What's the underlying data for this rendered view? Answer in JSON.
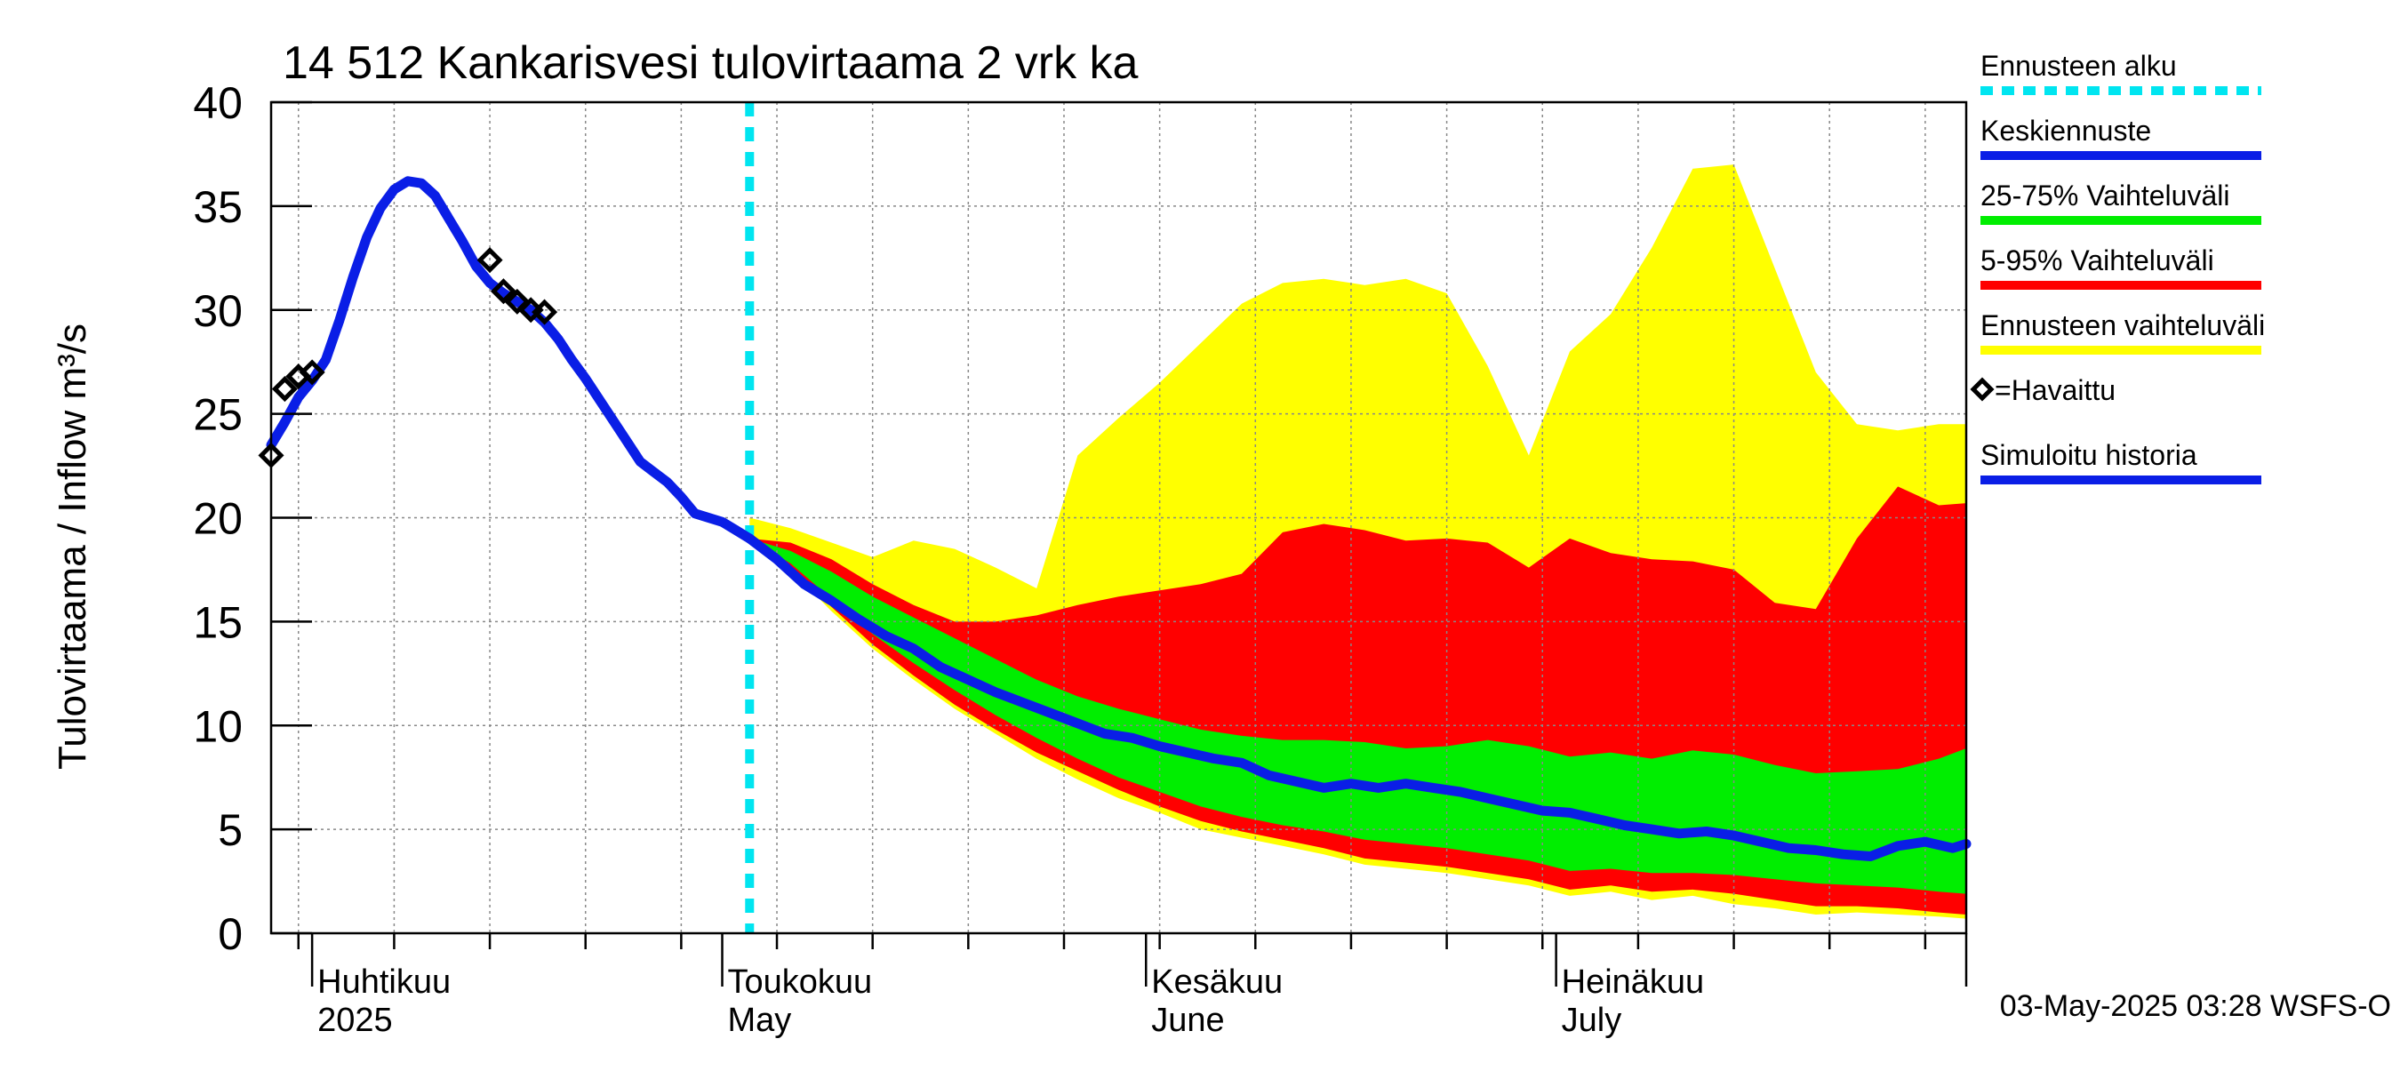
{
  "chart_data": {
    "type": "area",
    "title": "14 512 Kankarisvesi tulovirtaama 2 vrk ka",
    "ylabel": "Tulovirtaama / Inflow    m³/s",
    "ylim": [
      0,
      40
    ],
    "y_ticks": [
      0,
      5,
      10,
      15,
      20,
      25,
      30,
      35,
      40
    ],
    "xlim": [
      "2025-03-29",
      "2025-07-31"
    ],
    "grid": true,
    "legend_position": "right",
    "month_labels": [
      {
        "date": "2025-04-01",
        "fi": "Huhtikuu",
        "en": "2025"
      },
      {
        "date": "2025-05-01",
        "fi": "Toukokuu",
        "en": "May"
      },
      {
        "date": "2025-06-01",
        "fi": "Kesäkuu",
        "en": "June"
      },
      {
        "date": "2025-07-01",
        "fi": "Heinäkuu",
        "en": "July"
      }
    ],
    "forecast_start": "2025-05-03",
    "colors": {
      "forecast_start": "#00e5f0",
      "median": "#0a1ee6",
      "band_25_75": "#00ee00",
      "band_5_95": "#ff0000",
      "band_range": "#ffff00",
      "observed": "#000000",
      "grid": "#888888"
    },
    "legend": [
      {
        "label": "Ennusteen alku",
        "color": "#00e5f0",
        "style": "dashed"
      },
      {
        "label": "Keskiennuste",
        "color": "#0a1ee6",
        "style": "solid"
      },
      {
        "label": "25-75% Vaihteluväli",
        "color": "#00ee00",
        "style": "solid"
      },
      {
        "label": "5-95% Vaihteluväli",
        "color": "#ff0000",
        "style": "solid"
      },
      {
        "label": "Ennusteen vaihteluväli",
        "color": "#ffff00",
        "style": "solid"
      },
      {
        "label": "=Havaittu",
        "color": "#000000",
        "style": "marker"
      },
      {
        "label": "Simuloitu historia",
        "color": "#0a1ee6",
        "style": "solid"
      }
    ],
    "footer": "03-May-2025 03:28 WSFS-O",
    "series": [
      {
        "name": "Simuloitu historia",
        "points": [
          [
            "2025-03-29",
            23.5
          ],
          [
            "2025-03-30",
            24.6
          ],
          [
            "2025-03-31",
            25.8
          ],
          [
            "2025-04-01",
            26.6
          ],
          [
            "2025-04-02",
            27.6
          ],
          [
            "2025-04-03",
            29.5
          ],
          [
            "2025-04-04",
            31.6
          ],
          [
            "2025-04-05",
            33.5
          ],
          [
            "2025-04-06",
            34.9
          ],
          [
            "2025-04-07",
            35.8
          ],
          [
            "2025-04-08",
            36.2
          ],
          [
            "2025-04-09",
            36.1
          ],
          [
            "2025-04-10",
            35.5
          ],
          [
            "2025-04-11",
            34.4
          ],
          [
            "2025-04-12",
            33.3
          ],
          [
            "2025-04-13",
            32.1
          ],
          [
            "2025-04-14",
            31.3
          ],
          [
            "2025-04-15",
            30.8
          ],
          [
            "2025-04-16",
            30.4
          ],
          [
            "2025-04-17",
            30.0
          ],
          [
            "2025-04-18",
            29.4
          ],
          [
            "2025-04-19",
            28.6
          ],
          [
            "2025-04-20",
            27.6
          ],
          [
            "2025-04-21",
            26.7
          ],
          [
            "2025-04-22",
            25.7
          ],
          [
            "2025-04-23",
            24.7
          ],
          [
            "2025-04-24",
            23.7
          ],
          [
            "2025-04-25",
            22.7
          ],
          [
            "2025-04-26",
            22.2
          ],
          [
            "2025-04-27",
            21.7
          ],
          [
            "2025-04-28",
            21.0
          ],
          [
            "2025-04-29",
            20.2
          ],
          [
            "2025-04-30",
            20.0
          ],
          [
            "2025-05-01",
            19.8
          ],
          [
            "2025-05-02",
            19.4
          ],
          [
            "2025-05-03",
            19.0
          ]
        ]
      },
      {
        "name": "Keskiennuste",
        "points": [
          [
            "2025-05-03",
            19.0
          ],
          [
            "2025-05-05",
            18.0
          ],
          [
            "2025-05-07",
            16.8
          ],
          [
            "2025-05-09",
            16.0
          ],
          [
            "2025-05-11",
            15.1
          ],
          [
            "2025-05-13",
            14.3
          ],
          [
            "2025-05-15",
            13.7
          ],
          [
            "2025-05-17",
            12.8
          ],
          [
            "2025-05-19",
            12.2
          ],
          [
            "2025-05-21",
            11.6
          ],
          [
            "2025-05-23",
            11.1
          ],
          [
            "2025-05-25",
            10.6
          ],
          [
            "2025-05-27",
            10.1
          ],
          [
            "2025-05-29",
            9.6
          ],
          [
            "2025-05-31",
            9.4
          ],
          [
            "2025-06-02",
            9.0
          ],
          [
            "2025-06-04",
            8.7
          ],
          [
            "2025-06-06",
            8.4
          ],
          [
            "2025-06-08",
            8.2
          ],
          [
            "2025-06-10",
            7.6
          ],
          [
            "2025-06-12",
            7.3
          ],
          [
            "2025-06-14",
            7.0
          ],
          [
            "2025-06-16",
            7.2
          ],
          [
            "2025-06-18",
            7.0
          ],
          [
            "2025-06-20",
            7.2
          ],
          [
            "2025-06-22",
            7.0
          ],
          [
            "2025-06-24",
            6.8
          ],
          [
            "2025-06-26",
            6.5
          ],
          [
            "2025-06-28",
            6.2
          ],
          [
            "2025-06-30",
            5.9
          ],
          [
            "2025-07-02",
            5.8
          ],
          [
            "2025-07-04",
            5.5
          ],
          [
            "2025-07-06",
            5.2
          ],
          [
            "2025-07-08",
            5.0
          ],
          [
            "2025-07-10",
            4.8
          ],
          [
            "2025-07-12",
            4.9
          ],
          [
            "2025-07-14",
            4.7
          ],
          [
            "2025-07-16",
            4.4
          ],
          [
            "2025-07-18",
            4.1
          ],
          [
            "2025-07-20",
            4.0
          ],
          [
            "2025-07-22",
            3.8
          ],
          [
            "2025-07-24",
            3.7
          ],
          [
            "2025-07-26",
            4.2
          ],
          [
            "2025-07-28",
            4.4
          ],
          [
            "2025-07-30",
            4.1
          ],
          [
            "2025-07-31",
            4.3
          ]
        ]
      },
      {
        "name": "Havaittu",
        "points": [
          [
            "2025-03-29",
            23.0
          ],
          [
            "2025-03-30",
            26.2
          ],
          [
            "2025-03-31",
            26.8
          ],
          [
            "2025-04-01",
            27.0
          ],
          [
            "2025-04-14",
            32.4
          ],
          [
            "2025-04-15",
            30.9
          ],
          [
            "2025-04-16",
            30.4
          ],
          [
            "2025-04-17",
            30.0
          ],
          [
            "2025-04-18",
            29.9
          ]
        ]
      }
    ],
    "bands": {
      "dates": [
        "2025-05-03",
        "2025-05-06",
        "2025-05-09",
        "2025-05-12",
        "2025-05-15",
        "2025-05-18",
        "2025-05-21",
        "2025-05-24",
        "2025-05-27",
        "2025-05-30",
        "2025-06-02",
        "2025-06-05",
        "2025-06-08",
        "2025-06-11",
        "2025-06-14",
        "2025-06-17",
        "2025-06-20",
        "2025-06-23",
        "2025-06-26",
        "2025-06-29",
        "2025-07-02",
        "2025-07-05",
        "2025-07-08",
        "2025-07-11",
        "2025-07-14",
        "2025-07-17",
        "2025-07-20",
        "2025-07-23",
        "2025-07-26",
        "2025-07-29",
        "2025-07-31"
      ],
      "p0": [
        19.0,
        17.5,
        15.5,
        13.7,
        12.2,
        10.8,
        9.6,
        8.4,
        7.4,
        6.5,
        5.8,
        5.0,
        4.6,
        4.2,
        3.8,
        3.3,
        3.1,
        2.9,
        2.6,
        2.3,
        1.8,
        2.0,
        1.6,
        1.8,
        1.4,
        1.2,
        0.9,
        1.0,
        0.9,
        0.8,
        0.7
      ],
      "p5": [
        19.0,
        17.6,
        15.7,
        13.9,
        12.4,
        11.0,
        9.8,
        8.7,
        7.8,
        6.9,
        6.1,
        5.4,
        4.9,
        4.5,
        4.1,
        3.6,
        3.4,
        3.2,
        2.9,
        2.6,
        2.1,
        2.3,
        2.0,
        2.1,
        1.9,
        1.6,
        1.3,
        1.3,
        1.2,
        1.0,
        0.9
      ],
      "p25": [
        19.0,
        17.8,
        16.1,
        14.4,
        13.0,
        11.7,
        10.5,
        9.4,
        8.4,
        7.5,
        6.8,
        6.1,
        5.6,
        5.2,
        4.9,
        4.5,
        4.3,
        4.1,
        3.8,
        3.5,
        3.0,
        3.1,
        2.9,
        2.9,
        2.8,
        2.6,
        2.4,
        2.3,
        2.2,
        2.0,
        1.9
      ],
      "p75": [
        19.0,
        18.4,
        17.4,
        16.2,
        15.2,
        14.2,
        13.2,
        12.2,
        11.4,
        10.8,
        10.3,
        9.8,
        9.5,
        9.3,
        9.3,
        9.2,
        8.9,
        9.0,
        9.3,
        9.0,
        8.5,
        8.7,
        8.4,
        8.8,
        8.6,
        8.1,
        7.7,
        7.8,
        7.9,
        8.4,
        8.9
      ],
      "p95": [
        19.0,
        18.8,
        18.0,
        16.8,
        15.8,
        15.0,
        15.0,
        15.3,
        15.8,
        16.2,
        16.5,
        16.8,
        17.3,
        19.3,
        19.7,
        19.4,
        18.9,
        19.0,
        18.8,
        17.6,
        19.0,
        18.3,
        18.0,
        17.9,
        17.5,
        15.9,
        15.6,
        19.0,
        21.5,
        20.6,
        20.7
      ],
      "p100": [
        20.0,
        19.5,
        18.8,
        18.1,
        18.9,
        18.5,
        17.6,
        16.6,
        23.0,
        24.8,
        26.5,
        28.4,
        30.3,
        31.3,
        31.5,
        31.2,
        31.5,
        30.8,
        27.3,
        23.0,
        28.0,
        29.8,
        33.0,
        36.8,
        37.0,
        32.0,
        27.0,
        24.5,
        24.2,
        24.5,
        24.5
      ]
    }
  }
}
